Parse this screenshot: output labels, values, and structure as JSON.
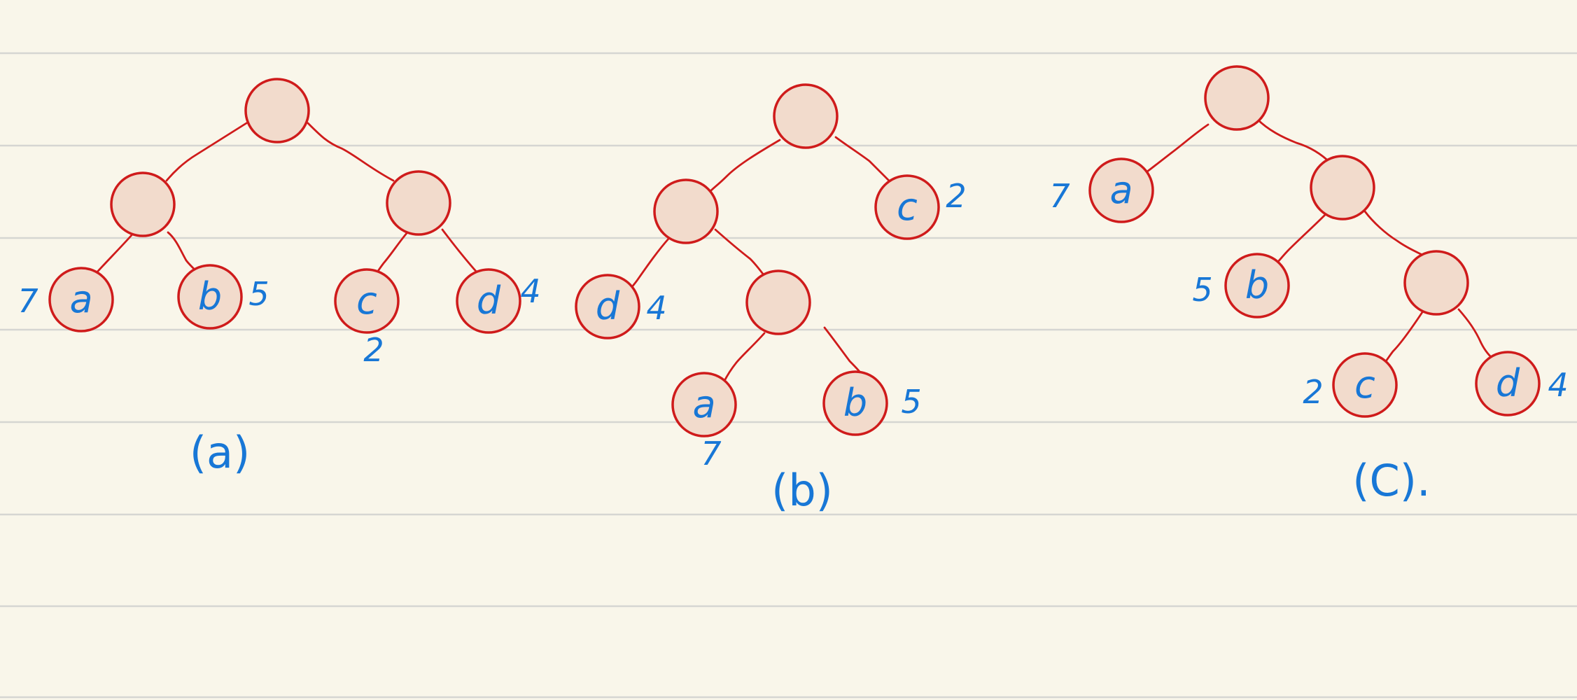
{
  "colors": {
    "paper": "#f9f6ea",
    "ruled_line": "#d6d6d2",
    "node_fill": "#f2dbcc",
    "node_stroke": "#cf1b1b",
    "ink": "#1877d6"
  },
  "trees": [
    {
      "caption": "(a)",
      "nodes": [
        {
          "label": "",
          "weight": ""
        },
        {
          "label": "",
          "weight": ""
        },
        {
          "label": "",
          "weight": ""
        },
        {
          "label": "a",
          "weight": "7"
        },
        {
          "label": "b",
          "weight": "5"
        },
        {
          "label": "c",
          "weight": "2"
        },
        {
          "label": "d",
          "weight": "4"
        }
      ]
    },
    {
      "caption": "(b)",
      "nodes": [
        {
          "label": "",
          "weight": ""
        },
        {
          "label": "",
          "weight": ""
        },
        {
          "label": "c",
          "weight": "2"
        },
        {
          "label": "d",
          "weight": "4"
        },
        {
          "label": "",
          "weight": ""
        },
        {
          "label": "a",
          "weight": "7"
        },
        {
          "label": "b",
          "weight": "5"
        }
      ]
    },
    {
      "caption": "(C).",
      "nodes": [
        {
          "label": "",
          "weight": ""
        },
        {
          "label": "a",
          "weight": "7"
        },
        {
          "label": "",
          "weight": ""
        },
        {
          "label": "b",
          "weight": "5"
        },
        {
          "label": "",
          "weight": ""
        },
        {
          "label": "c",
          "weight": "2"
        },
        {
          "label": "d",
          "weight": "4"
        }
      ]
    }
  ]
}
